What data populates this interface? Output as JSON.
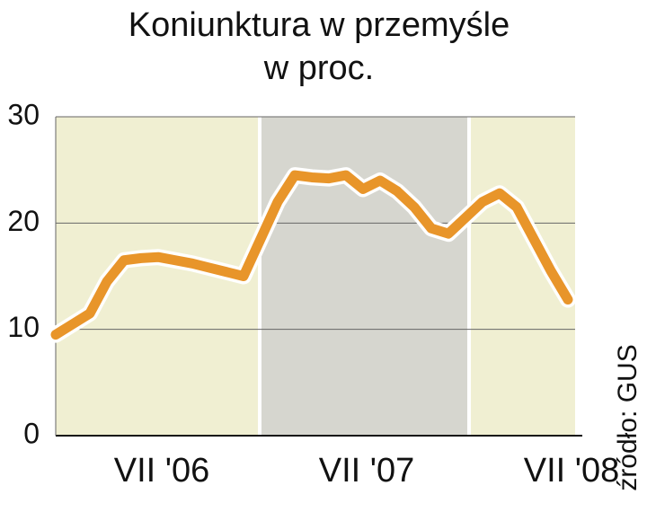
{
  "chart_data": {
    "type": "line",
    "title": "Koniunktura w przemyśle",
    "subtitle": "w proc.",
    "source": "źródło: GUS",
    "categories": [
      null,
      null,
      null,
      null,
      null,
      null,
      "VII '06",
      null,
      null,
      null,
      null,
      null,
      null,
      null,
      null,
      null,
      null,
      null,
      "VII '07",
      null,
      null,
      null,
      null,
      null,
      null,
      null,
      null,
      null,
      null,
      null,
      "VII '08"
    ],
    "series": [
      {
        "name": "Koniunktura",
        "color": "#e8952a",
        "values": [
          9.5,
          10.5,
          11.5,
          14.5,
          16.5,
          16.7,
          16.8,
          16.5,
          16.2,
          15.8,
          15.4,
          15.0,
          18.5,
          22.0,
          24.5,
          24.3,
          24.2,
          24.5,
          23.2,
          24.0,
          23.0,
          21.5,
          19.5,
          19.0,
          20.5,
          22.0,
          22.8,
          21.5,
          18.5,
          15.5,
          12.8
        ]
      }
    ],
    "ylim": [
      0,
      30
    ],
    "yticks": [
      0,
      10,
      20,
      30
    ],
    "grid": true
  }
}
